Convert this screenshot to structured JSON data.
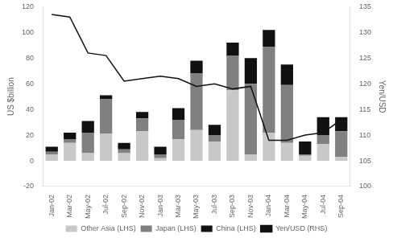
{
  "chart_data": {
    "type": "bar",
    "stacked": true,
    "grid": false,
    "legend": "bottom",
    "ylabel": "US $billion",
    "y2label": "Yen/USD",
    "categories": [
      "Jan-02",
      "Mar-02",
      "May-02",
      "Jul-02",
      "Sep-02",
      "Nov-02",
      "Jan-03",
      "Mar-03",
      "May-03",
      "Jul-03",
      "Sep-03",
      "Nov-03",
      "Jan-04",
      "Mar-04",
      "May-04",
      "Jul-04",
      "Sep-04"
    ],
    "series": [
      {
        "name": "Other Asia (LHS)",
        "color": "#c8c8c8",
        "values": [
          5,
          14,
          6,
          21,
          6,
          23,
          2,
          17,
          24,
          15,
          55,
          5,
          22,
          14,
          4,
          13,
          3
        ]
      },
      {
        "name": "Japan (LHS)",
        "color": "#808080",
        "values": [
          2,
          3,
          16,
          27,
          3,
          10,
          3,
          15,
          44,
          5,
          27,
          55,
          67,
          45,
          1,
          7,
          20
        ]
      },
      {
        "name": "China (LHS)",
        "color": "#111111",
        "values": [
          4,
          5,
          9,
          3,
          5,
          5,
          6,
          9,
          10,
          8,
          10,
          20,
          13,
          16,
          10,
          14,
          11
        ]
      },
      {
        "name": "Yen/USD (RHS)",
        "type": "line",
        "axis": "y2",
        "color": "#111111",
        "values": [
          133.5,
          133.0,
          126.0,
          125.5,
          120.5,
          121.0,
          121.5,
          121.0,
          119.5,
          120.0,
          119.0,
          119.5,
          109.0,
          109.0,
          110.0,
          110.5,
          113.0
        ]
      }
    ],
    "ylim": [
      -20,
      120
    ],
    "yticks": [
      -20,
      0,
      20,
      40,
      60,
      80,
      100,
      120
    ],
    "y2lim": [
      100,
      135
    ],
    "y2ticks": [
      100,
      105,
      110,
      115,
      120,
      125,
      130,
      135
    ]
  }
}
